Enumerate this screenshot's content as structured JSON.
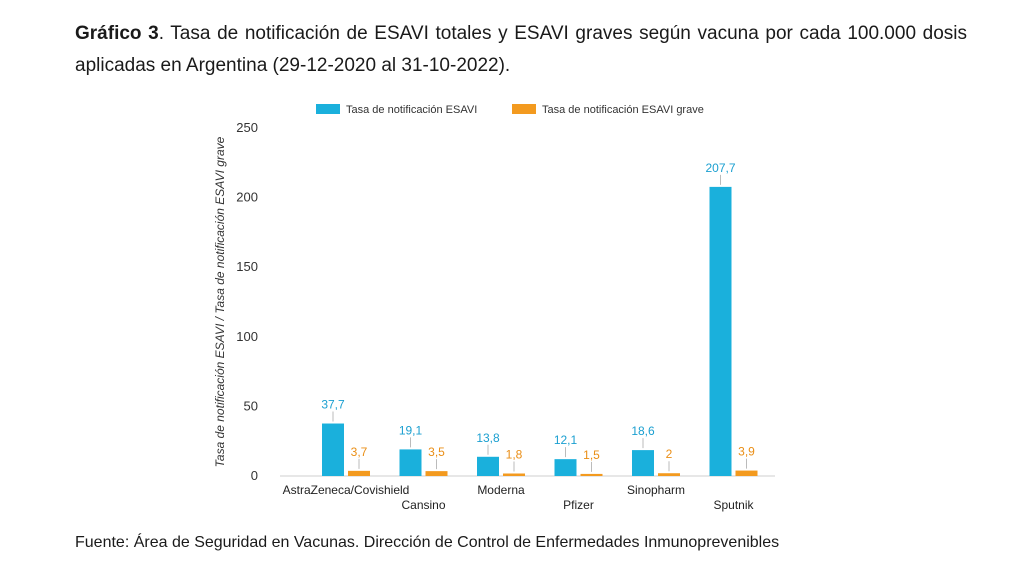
{
  "caption": {
    "label": "Gráfico 3",
    "text": ". Tasa de notificación de ESAVI totales y ESAVI graves según vacuna por cada 100.000 dosis aplicadas en Argentina (29-12-2020 al 31-10-2022)."
  },
  "source": "Fuente: Área de Seguridad en Vacunas. Dirección de Control de Enfermedades Inmunoprevenibles",
  "colors": {
    "esavi": "#1ab0dc",
    "grave": "#f39a1f"
  },
  "chart_data": {
    "type": "bar",
    "categories": [
      "AstraZeneca/Covishield",
      "Cansino",
      "Moderna",
      "Pfizer",
      "Sinopharm",
      "Sputnik"
    ],
    "series": [
      {
        "name": "Tasa de notificación ESAVI",
        "values": [
          37.7,
          19.1,
          13.8,
          12.1,
          18.6,
          207.7
        ],
        "labels": [
          "37,7",
          "19,1",
          "13,8",
          "12,1",
          "18,6",
          "207,7"
        ]
      },
      {
        "name": "Tasa de notificación ESAVI grave",
        "values": [
          3.7,
          3.5,
          1.8,
          1.5,
          2,
          3.9
        ],
        "labels": [
          "3,7",
          "3,5",
          "1,8",
          "1,5",
          "2",
          "3,9"
        ]
      }
    ],
    "ylabel": "Tasa de notificación ESAVI / Tasa de notificación ESAVI grave",
    "xlabel": "",
    "ylim": [
      0,
      250
    ],
    "yticks": [
      0,
      50,
      100,
      150,
      200,
      250
    ],
    "grid": false,
    "legend": "top"
  }
}
